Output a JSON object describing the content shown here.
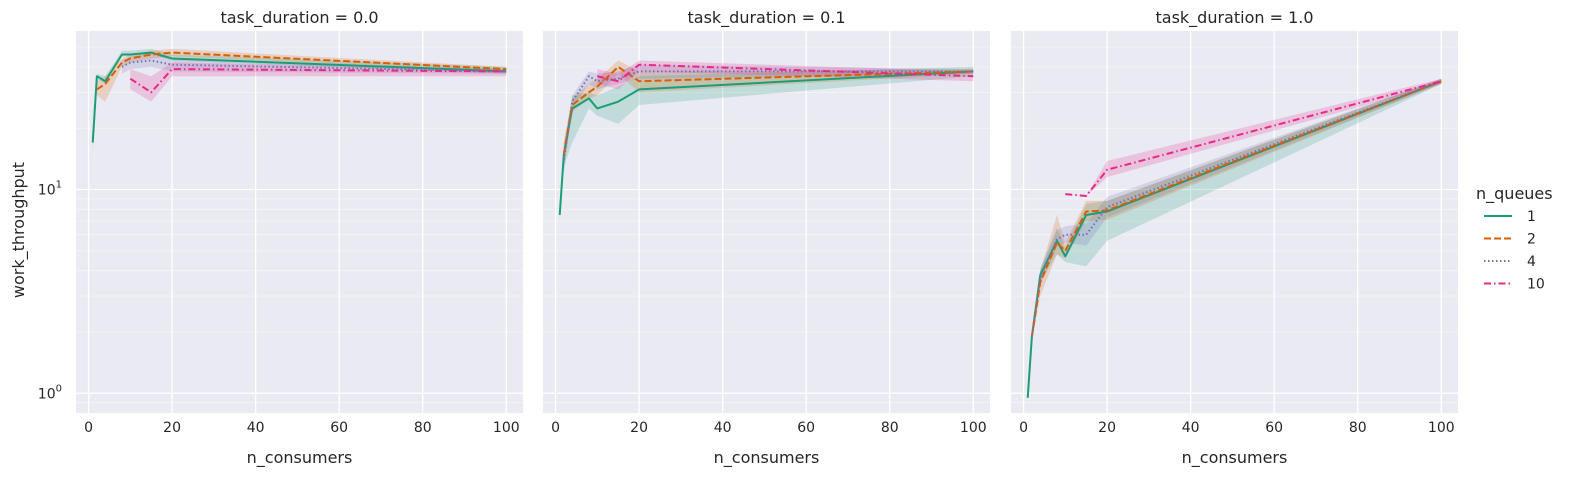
{
  "chart_data": {
    "type": "line",
    "facet_variable": "task_duration",
    "xlabel": "n_consumers",
    "ylabel": "work_throughput",
    "x_ticks": [
      0,
      20,
      40,
      60,
      80,
      100
    ],
    "x_tick_labels": [
      "0",
      "20",
      "40",
      "60",
      "80",
      "100"
    ],
    "xlim": [
      -3,
      104
    ],
    "y_scale": "log",
    "ylim": [
      0.8,
      60
    ],
    "y_ticks": [
      {
        "value": 1,
        "base": "10",
        "exp": "0"
      },
      {
        "value": 10,
        "base": "10",
        "exp": "1"
      }
    ],
    "grid": true,
    "legend": {
      "title": "n_queues",
      "placement": "right",
      "entries": [
        {
          "label": "1",
          "color": "#1b9e77",
          "dash": "solid"
        },
        {
          "label": "2",
          "color": "#d95f02",
          "dash": "dashed"
        },
        {
          "label": "4",
          "color": "#7570b3",
          "dash": "dotted"
        },
        {
          "label": "10",
          "color": "#e7298a",
          "dash": "dashdot"
        }
      ]
    },
    "panels": [
      {
        "title": "task_duration = 0.0",
        "series": [
          {
            "name": "1",
            "x": [
              1,
              2,
              4,
              8,
              10,
              15,
              20,
              100
            ],
            "y": [
              17,
              36,
              34,
              46,
              46,
              47,
              44,
              38
            ],
            "y_low": [
              15,
              35,
              33,
              45,
              45,
              46,
              43,
              37
            ],
            "y_high": [
              19,
              37,
              36,
              48,
              48,
              49,
              46,
              40
            ]
          },
          {
            "name": "2",
            "x": [
              2,
              4,
              8,
              10,
              15,
              20,
              100
            ],
            "y": [
              31,
              33,
              42,
              44,
              46,
              47,
              39
            ],
            "y_low": [
              29,
              27,
              40,
              42,
              44,
              45,
              38
            ],
            "y_high": [
              34,
              36,
              44,
              46,
              48,
              49,
              40
            ]
          },
          {
            "name": "4",
            "x": [
              8,
              10,
              15,
              20,
              100
            ],
            "y": [
              40,
              42,
              43,
              41,
              38
            ],
            "y_low": [
              37,
              39,
              40,
              38,
              37
            ],
            "y_high": [
              43,
              45,
              46,
              44,
              39
            ]
          },
          {
            "name": "10",
            "x": [
              10,
              15,
              20,
              100
            ],
            "y": [
              35,
              30,
              39,
              38
            ],
            "y_low": [
              31,
              27,
              36,
              36
            ],
            "y_high": [
              39,
              36,
              42,
              39
            ]
          }
        ]
      },
      {
        "title": "task_duration = 0.1",
        "series": [
          {
            "name": "1",
            "x": [
              1,
              2,
              4,
              8,
              10,
              15,
              20,
              100
            ],
            "y": [
              7.5,
              15,
              25,
              28,
              25,
              27,
              31,
              38
            ],
            "y_low": [
              7.5,
              13,
              17,
              25,
              23,
              21,
              26,
              36
            ],
            "y_high": [
              7.5,
              17,
              29,
              30,
              29,
              32,
              36,
              40
            ]
          },
          {
            "name": "2",
            "x": [
              2,
              4,
              8,
              10,
              15,
              20,
              100
            ],
            "y": [
              15,
              26,
              30,
              32,
              40,
              34,
              38
            ],
            "y_low": [
              13,
              24,
              28,
              29,
              37,
              30,
              37
            ],
            "y_high": [
              17,
              28,
              33,
              35,
              43,
              38,
              39
            ]
          },
          {
            "name": "4",
            "x": [
              2,
              4,
              8,
              10,
              15,
              20,
              100
            ],
            "y": [
              14,
              27,
              36,
              34,
              35,
              38,
              38
            ],
            "y_low": [
              12,
              25,
              33,
              31,
              33,
              35,
              37
            ],
            "y_high": [
              16,
              29,
              38,
              37,
              38,
              41,
              39
            ]
          },
          {
            "name": "10",
            "x": [
              10,
              15,
              20,
              100
            ],
            "y": [
              36,
              34,
              41,
              36
            ],
            "y_low": [
              33,
              31,
              38,
              34
            ],
            "y_high": [
              39,
              37,
              43,
              38
            ]
          }
        ]
      },
      {
        "title": "task_duration = 1.0",
        "series": [
          {
            "name": "1",
            "x": [
              1,
              2,
              4,
              8,
              10,
              15,
              20,
              100
            ],
            "y": [
              0.95,
              1.9,
              3.8,
              5.6,
              4.7,
              7.5,
              7.8,
              34
            ],
            "y_low": [
              0.95,
              1.8,
              3.5,
              4.8,
              4.4,
              4.2,
              5.6,
              33
            ],
            "y_high": [
              0.95,
              2.0,
              4.1,
              6.5,
              5.2,
              8.5,
              8.8,
              35
            ]
          },
          {
            "name": "2",
            "x": [
              2,
              4,
              8,
              10,
              15,
              20,
              100
            ],
            "y": [
              1.9,
              3.5,
              5.5,
              5.0,
              7.8,
              7.9,
              34
            ],
            "y_low": [
              1.8,
              3.0,
              4.8,
              4.6,
              7.0,
              7.1,
              33
            ],
            "y_high": [
              2.0,
              4.0,
              7.5,
              5.5,
              8.8,
              8.8,
              35
            ]
          },
          {
            "name": "4",
            "x": [
              2,
              4,
              8,
              10,
              15,
              20,
              100
            ],
            "y": [
              1.9,
              3.7,
              5.7,
              6.0,
              6.0,
              8.2,
              34
            ],
            "y_low": [
              1.8,
              3.4,
              5.2,
              5.5,
              5.3,
              7.3,
              33
            ],
            "y_high": [
              2.0,
              4.0,
              6.3,
              6.6,
              6.8,
              9.2,
              35
            ]
          },
          {
            "name": "10",
            "x": [
              10,
              15,
              20,
              100
            ],
            "y": [
              9.5,
              9.3,
              12.5,
              34
            ],
            "y_low": [
              9.5,
              9.3,
              11.5,
              33
            ],
            "y_high": [
              9.5,
              9.3,
              13.8,
              35
            ]
          }
        ]
      }
    ]
  }
}
